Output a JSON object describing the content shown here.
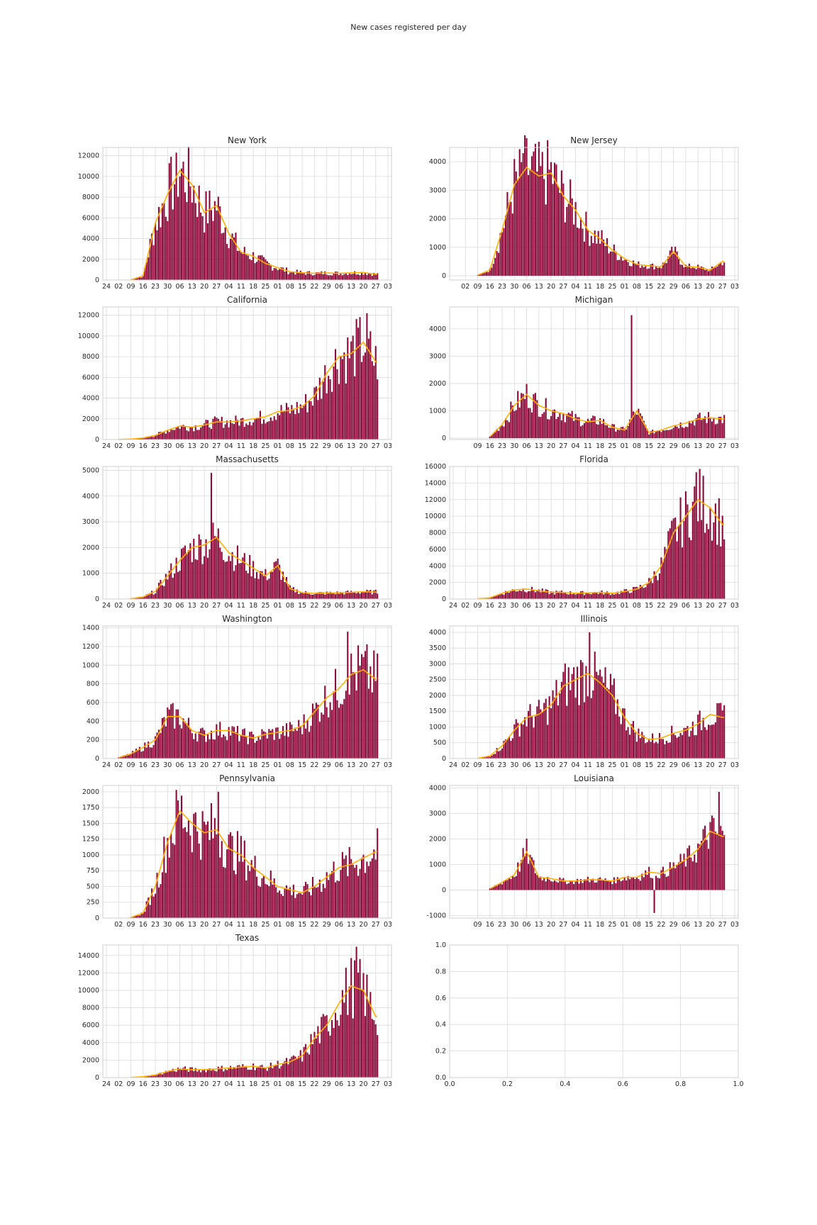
{
  "figure": {
    "title": "New cases registered per day"
  },
  "colors": {
    "bar": "#8b0a3a",
    "line": "#ffb000"
  },
  "date_ticks": [
    "24",
    "02",
    "09",
    "16",
    "23",
    "30",
    "06",
    "13",
    "20",
    "27",
    "04",
    "11",
    "18",
    "25",
    "01",
    "08",
    "15",
    "22",
    "29",
    "06",
    "13",
    "20",
    "27",
    "03"
  ],
  "chart_data": [
    {
      "type": "bar",
      "title": "New York",
      "xlabel": "",
      "ylabel": "",
      "ylim": [
        0,
        12800
      ],
      "yticks": [
        0,
        2000,
        4000,
        6000,
        8000,
        10000,
        12000
      ],
      "xticks_from": 0,
      "series_note": "daily new cases (bars) with 7-day average (line)",
      "x": [
        "03-09",
        "03-16",
        "03-23",
        "03-30",
        "04-06",
        "04-13",
        "04-20",
        "04-27",
        "05-04",
        "05-11",
        "05-18",
        "05-25",
        "06-01",
        "06-08",
        "06-15",
        "06-22",
        "06-29",
        "07-06",
        "07-13",
        "07-20",
        "07-27"
      ],
      "values": [
        20,
        400,
        5500,
        8300,
        10600,
        9200,
        6500,
        7200,
        4500,
        2700,
        2300,
        1600,
        1200,
        800,
        700,
        650,
        680,
        650,
        700,
        720,
        560
      ],
      "series": [
        {
          "name": "",
          "values": [
            20,
            400,
            5500,
            8300,
            10600,
            9200,
            6500,
            7200,
            4500,
            2700,
            2300,
            1600,
            1200,
            800,
            700,
            650,
            680,
            650,
            700,
            720,
            560
          ]
        }
      ],
      "peak": 12300,
      "peak_at": "04-04"
    },
    {
      "type": "bar",
      "title": "New Jersey",
      "ylim": [
        -150,
        4500
      ],
      "yticks": [
        0,
        1000,
        2000,
        3000,
        4000
      ],
      "xticks_from": 1,
      "x": [
        "03-09",
        "03-16",
        "03-23",
        "03-30",
        "04-06",
        "04-13",
        "04-20",
        "04-27",
        "05-04",
        "05-11",
        "05-18",
        "05-25",
        "06-01",
        "06-08",
        "06-15",
        "06-22",
        "06-29",
        "07-06",
        "07-13",
        "07-20",
        "07-27"
      ],
      "values": [
        20,
        200,
        1600,
        3200,
        3800,
        3500,
        3600,
        2800,
        2300,
        1600,
        1300,
        900,
        600,
        400,
        350,
        320,
        850,
        330,
        300,
        200,
        500
      ],
      "peak": 4300,
      "peak_at": "04-04"
    },
    {
      "type": "bar",
      "title": "California",
      "ylim": [
        0,
        12800
      ],
      "yticks": [
        0,
        2000,
        4000,
        6000,
        8000,
        10000,
        12000
      ],
      "xticks_from": 0,
      "x": [
        "03-02",
        "03-09",
        "03-16",
        "03-23",
        "03-30",
        "04-06",
        "04-13",
        "04-20",
        "04-27",
        "05-04",
        "05-11",
        "05-18",
        "05-25",
        "06-01",
        "06-08",
        "06-15",
        "06-22",
        "06-29",
        "07-06",
        "07-13",
        "07-20",
        "07-27"
      ],
      "values": [
        10,
        50,
        150,
        400,
        900,
        1300,
        1200,
        1400,
        1700,
        1700,
        1800,
        2000,
        2200,
        2700,
        2800,
        3200,
        4200,
        6400,
        8000,
        8300,
        9400,
        7500
      ],
      "peak": 12200,
      "peak_at": "07-22"
    },
    {
      "type": "bar",
      "title": "Michigan",
      "ylim": [
        -50,
        4800
      ],
      "yticks": [
        0,
        1000,
        2000,
        3000,
        4000
      ],
      "xticks_from": 2,
      "x": [
        "03-16",
        "03-23",
        "03-30",
        "04-06",
        "04-13",
        "04-20",
        "04-27",
        "05-04",
        "05-11",
        "05-18",
        "05-25",
        "06-01",
        "06-08",
        "06-15",
        "06-22",
        "06-29",
        "07-06",
        "07-13",
        "07-20",
        "07-27"
      ],
      "values": [
        50,
        500,
        1200,
        1600,
        1200,
        1000,
        900,
        700,
        600,
        650,
        400,
        300,
        1000,
        200,
        300,
        450,
        550,
        700,
        750,
        700
      ],
      "peak": 4500,
      "peak_at": "06-05"
    },
    {
      "type": "bar",
      "title": "Massachusetts",
      "ylim": [
        0,
        5150
      ],
      "yticks": [
        0,
        1000,
        2000,
        3000,
        4000,
        5000
      ],
      "xticks_from": 0,
      "x": [
        "03-09",
        "03-16",
        "03-23",
        "03-30",
        "04-06",
        "04-13",
        "04-20",
        "04-27",
        "05-04",
        "05-11",
        "05-18",
        "05-25",
        "06-01",
        "06-08",
        "06-15",
        "06-22",
        "06-29",
        "07-06",
        "07-13",
        "07-20",
        "07-27"
      ],
      "values": [
        20,
        80,
        300,
        900,
        1500,
        2000,
        2100,
        2400,
        1800,
        1500,
        1200,
        900,
        1300,
        400,
        250,
        220,
        230,
        240,
        260,
        280,
        270
      ],
      "peak": 4900,
      "peak_at": "04-24"
    },
    {
      "type": "bar",
      "title": "Florida",
      "ylim": [
        0,
        16000
      ],
      "yticks": [
        0,
        2000,
        4000,
        6000,
        8000,
        10000,
        12000,
        14000,
        16000
      ],
      "xticks_from": 0,
      "x": [
        "03-09",
        "03-16",
        "03-23",
        "03-30",
        "04-06",
        "04-13",
        "04-20",
        "04-27",
        "05-04",
        "05-11",
        "05-18",
        "05-25",
        "06-01",
        "06-08",
        "06-15",
        "06-22",
        "06-29",
        "07-06",
        "07-13",
        "07-20",
        "07-27"
      ],
      "values": [
        30,
        150,
        700,
        1100,
        1200,
        1000,
        800,
        800,
        700,
        750,
        800,
        700,
        900,
        1200,
        2000,
        4000,
        8000,
        10000,
        12000,
        11000,
        9000
      ],
      "peak": 15300,
      "peak_at": "07-12"
    },
    {
      "type": "bar",
      "title": "Washington",
      "ylim": [
        0,
        1420
      ],
      "yticks": [
        0,
        200,
        400,
        600,
        800,
        1000,
        1200,
        1400
      ],
      "xticks_from": 0,
      "x": [
        "03-02",
        "03-09",
        "03-16",
        "03-23",
        "03-30",
        "04-06",
        "04-13",
        "04-20",
        "04-27",
        "05-04",
        "05-11",
        "05-18",
        "05-25",
        "06-01",
        "06-08",
        "06-15",
        "06-22",
        "06-29",
        "07-06",
        "07-13",
        "07-20",
        "07-27"
      ],
      "values": [
        10,
        50,
        120,
        200,
        450,
        450,
        300,
        250,
        300,
        300,
        250,
        220,
        260,
        280,
        300,
        350,
        500,
        650,
        750,
        900,
        950,
        850
      ],
      "peak": 1360,
      "peak_at": "07-11"
    },
    {
      "type": "bar",
      "title": "Illinois",
      "ylim": [
        0,
        4200
      ],
      "yticks": [
        0,
        500,
        1000,
        1500,
        2000,
        2500,
        3000,
        3500,
        4000
      ],
      "xticks_from": 0,
      "x": [
        "03-09",
        "03-16",
        "03-23",
        "03-30",
        "04-06",
        "04-13",
        "04-20",
        "04-27",
        "05-04",
        "05-11",
        "05-18",
        "05-25",
        "06-01",
        "06-08",
        "06-15",
        "06-22",
        "06-29",
        "07-06",
        "07-13",
        "07-20",
        "07-27"
      ],
      "values": [
        10,
        80,
        400,
        900,
        1300,
        1400,
        1700,
        2300,
        2500,
        2700,
        2400,
        2000,
        1300,
        800,
        600,
        650,
        800,
        900,
        1100,
        1400,
        1300
      ],
      "peak": 4000,
      "peak_at": "05-12"
    },
    {
      "type": "bar",
      "title": "Pennsylvania",
      "ylim": [
        0,
        2100
      ],
      "yticks": [
        0,
        250,
        500,
        750,
        1000,
        1250,
        1500,
        1750,
        2000
      ],
      "xticks_from": 1,
      "x": [
        "03-09",
        "03-16",
        "03-23",
        "03-30",
        "04-06",
        "04-13",
        "04-20",
        "04-27",
        "05-04",
        "05-11",
        "05-18",
        "05-25",
        "06-01",
        "06-08",
        "06-15",
        "06-22",
        "06-29",
        "07-06",
        "07-13",
        "07-20",
        "07-27"
      ],
      "values": [
        10,
        80,
        500,
        1200,
        1700,
        1500,
        1350,
        1400,
        1100,
        1000,
        800,
        650,
        500,
        450,
        400,
        500,
        650,
        800,
        850,
        950,
        1050
      ],
      "peak": 2000,
      "peak_at": "04-28"
    },
    {
      "type": "bar",
      "title": "Louisiana",
      "ylim": [
        -1100,
        4100
      ],
      "yticks": [
        -1000,
        0,
        1000,
        2000,
        3000,
        4000
      ],
      "xticks_from": 2,
      "x": [
        "03-16",
        "03-23",
        "03-30",
        "04-06",
        "04-13",
        "04-20",
        "04-27",
        "05-04",
        "05-11",
        "05-18",
        "05-25",
        "06-01",
        "06-08",
        "06-15",
        "06-22",
        "06-29",
        "07-06",
        "07-13",
        "07-20",
        "07-27"
      ],
      "values": [
        50,
        300,
        600,
        1500,
        500,
        450,
        350,
        350,
        400,
        400,
        350,
        500,
        500,
        700,
        650,
        900,
        1200,
        1600,
        2300,
        2100
      ],
      "peak": 3850,
      "peak_at": "07-25",
      "min": -900,
      "min_at": "06-18"
    },
    {
      "type": "bar",
      "title": "Texas",
      "ylim": [
        0,
        15200
      ],
      "yticks": [
        0,
        2000,
        4000,
        6000,
        8000,
        10000,
        12000,
        14000
      ],
      "xticks_from": 0,
      "x": [
        "03-09",
        "03-16",
        "03-23",
        "03-30",
        "04-06",
        "04-13",
        "04-20",
        "04-27",
        "05-04",
        "05-11",
        "05-18",
        "05-25",
        "06-01",
        "06-08",
        "06-15",
        "06-22",
        "06-29",
        "07-06",
        "07-13",
        "07-20",
        "07-27"
      ],
      "values": [
        20,
        100,
        300,
        700,
        1000,
        900,
        900,
        1000,
        1100,
        1200,
        1300,
        1100,
        1500,
        1800,
        2500,
        4500,
        6000,
        8500,
        10500,
        10000,
        7000
      ],
      "peak": 15000,
      "peak_at": "07-16"
    },
    {
      "type": "scatter",
      "title": "",
      "empty": true,
      "xlim": [
        0,
        1
      ],
      "ylim": [
        0,
        1
      ],
      "xticks": [
        "0.0",
        "0.2",
        "0.4",
        "0.6",
        "0.8",
        "1.0"
      ],
      "yticks": [
        "0.0",
        "0.2",
        "0.4",
        "0.6",
        "0.8",
        "1.0"
      ]
    }
  ]
}
